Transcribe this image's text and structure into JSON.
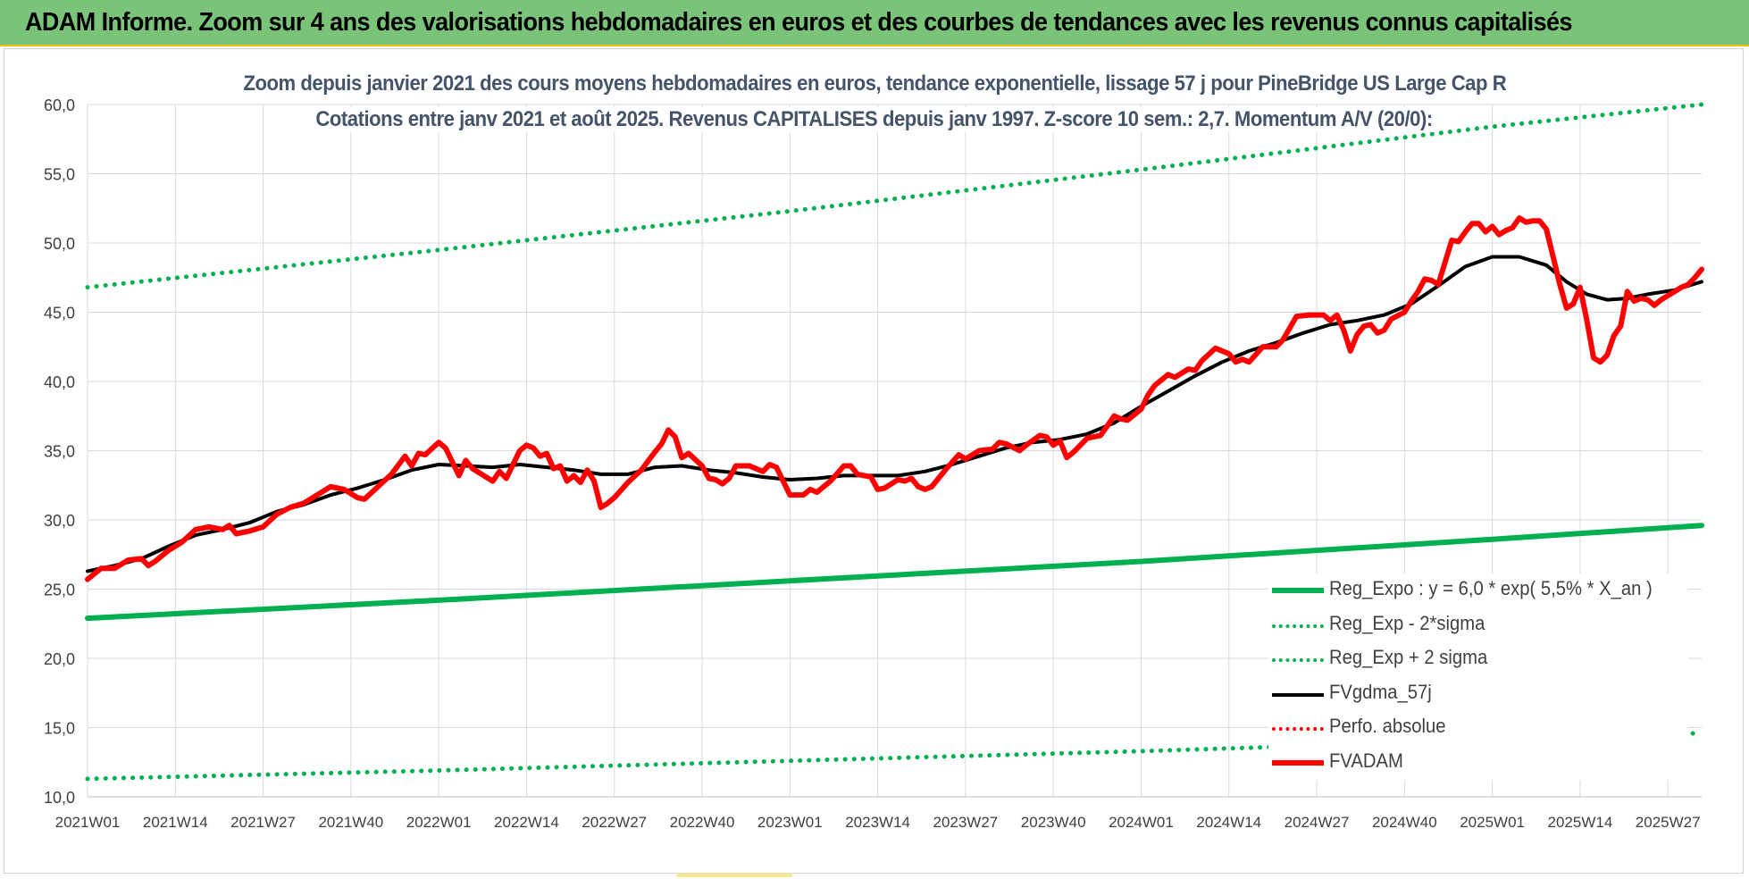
{
  "banner": {
    "title": "ADAM Informe. Zoom sur 4 ans des valorisations hebdomadaires en euros et des courbes de tendances avec les revenus connus capitalisés"
  },
  "colors": {
    "banner_bg": "#7ac47a",
    "reg_expo": "#00b050",
    "price": "#ff0000",
    "ma": "#000000",
    "title_text": "#44546a",
    "grid": "#d9d9d9"
  },
  "chart_data": {
    "type": "line",
    "title": "Zoom depuis janvier 2021 des cours moyens hebdomadaires en euros, tendance exponentielle, lissage 57 j pour PineBridge US Large Cap R",
    "subtitle": "Cotations entre janv 2021 et août 2025. Revenus CAPITALISES depuis janv 1997. Z-score 10 sem.: 2,7. Momentum A/V (20/0):",
    "xlabel": "",
    "ylabel": "",
    "ylim": [
      10,
      60
    ],
    "yticks": [
      "10,0",
      "15,0",
      "20,0",
      "25,0",
      "30,0",
      "35,0",
      "40,0",
      "45,0",
      "50,0",
      "55,0",
      "60,0"
    ],
    "x_ticks": [
      "2021W01",
      "2021W14",
      "2021W27",
      "2021W40",
      "2022W01",
      "2022W14",
      "2022W27",
      "2022W40",
      "2023W01",
      "2023W14",
      "2023W27",
      "2023W40",
      "2024W01",
      "2024W14",
      "2024W27",
      "2024W40",
      "2025W01",
      "2025W14",
      "2025W27"
    ],
    "x_tick_weeks": [
      0,
      13,
      26,
      39,
      52,
      65,
      78,
      91,
      104,
      117,
      130,
      143,
      156,
      169,
      182,
      195,
      208,
      221,
      234
    ],
    "x_max_week": 239,
    "grid": true,
    "legend_position": "bottom-right",
    "series": [
      {
        "name": "Reg_Expo : y = 6,0 * exp( 5,5% *  X_an )",
        "style": "solid-thick",
        "color": "#00b050",
        "points": [
          [
            0,
            22.9
          ],
          [
            52,
            24.2
          ],
          [
            104,
            25.6
          ],
          [
            156,
            27.0
          ],
          [
            208,
            28.6
          ],
          [
            239,
            29.6
          ]
        ]
      },
      {
        "name": "Reg_Exp - 2*sigma",
        "style": "dotted",
        "color": "#00b050",
        "points": [
          [
            0,
            11.3
          ],
          [
            52,
            11.9
          ],
          [
            104,
            12.6
          ],
          [
            156,
            13.3
          ],
          [
            208,
            14.1
          ],
          [
            239,
            14.6
          ]
        ]
      },
      {
        "name": "Reg_Exp + 2 sigma",
        "style": "dotted",
        "color": "#00b050",
        "points": [
          [
            0,
            46.8
          ],
          [
            52,
            49.5
          ],
          [
            104,
            52.3
          ],
          [
            156,
            55.3
          ],
          [
            208,
            58.4
          ],
          [
            239,
            60.0
          ]
        ]
      },
      {
        "name": "FVgdma_57j",
        "style": "solid",
        "color": "#000000",
        "points": [
          [
            0,
            26.3
          ],
          [
            4,
            26.7
          ],
          [
            8,
            27.2
          ],
          [
            12,
            28.1
          ],
          [
            16,
            28.9
          ],
          [
            20,
            29.3
          ],
          [
            24,
            29.8
          ],
          [
            28,
            30.6
          ],
          [
            32,
            31.1
          ],
          [
            36,
            31.8
          ],
          [
            40,
            32.3
          ],
          [
            44,
            32.9
          ],
          [
            48,
            33.6
          ],
          [
            52,
            34.0
          ],
          [
            56,
            33.9
          ],
          [
            60,
            33.8
          ],
          [
            64,
            34.0
          ],
          [
            68,
            33.8
          ],
          [
            72,
            33.6
          ],
          [
            76,
            33.3
          ],
          [
            80,
            33.3
          ],
          [
            84,
            33.8
          ],
          [
            88,
            33.9
          ],
          [
            92,
            33.6
          ],
          [
            96,
            33.4
          ],
          [
            100,
            33.1
          ],
          [
            104,
            32.9
          ],
          [
            108,
            33.0
          ],
          [
            112,
            33.2
          ],
          [
            116,
            33.2
          ],
          [
            120,
            33.2
          ],
          [
            124,
            33.5
          ],
          [
            128,
            34.0
          ],
          [
            132,
            34.6
          ],
          [
            136,
            35.2
          ],
          [
            140,
            35.6
          ],
          [
            144,
            35.8
          ],
          [
            148,
            36.2
          ],
          [
            152,
            37.0
          ],
          [
            156,
            38.2
          ],
          [
            160,
            39.3
          ],
          [
            164,
            40.4
          ],
          [
            168,
            41.4
          ],
          [
            172,
            42.2
          ],
          [
            176,
            42.8
          ],
          [
            180,
            43.5
          ],
          [
            184,
            44.1
          ],
          [
            188,
            44.4
          ],
          [
            192,
            44.8
          ],
          [
            196,
            45.6
          ],
          [
            200,
            46.9
          ],
          [
            204,
            48.3
          ],
          [
            208,
            49.0
          ],
          [
            212,
            49.0
          ],
          [
            216,
            48.4
          ],
          [
            219,
            47.2
          ],
          [
            222,
            46.3
          ],
          [
            225,
            45.9
          ],
          [
            228,
            46.0
          ],
          [
            231,
            46.3
          ],
          [
            235,
            46.6
          ],
          [
            239,
            47.2
          ]
        ]
      },
      {
        "name": "Perfo. absolue",
        "style": "dotted",
        "color": "#ff0000",
        "points": []
      },
      {
        "name": "FVADAM",
        "style": "solid-thick",
        "color": "#ff0000",
        "points": [
          [
            0,
            25.7
          ],
          [
            2,
            26.5
          ],
          [
            4,
            26.5
          ],
          [
            6,
            27.1
          ],
          [
            8,
            27.2
          ],
          [
            9,
            26.7
          ],
          [
            10,
            27.0
          ],
          [
            12,
            27.8
          ],
          [
            14,
            28.4
          ],
          [
            16,
            29.3
          ],
          [
            18,
            29.5
          ],
          [
            20,
            29.3
          ],
          [
            21,
            29.6
          ],
          [
            22,
            29.0
          ],
          [
            24,
            29.2
          ],
          [
            26,
            29.5
          ],
          [
            28,
            30.4
          ],
          [
            30,
            30.9
          ],
          [
            32,
            31.2
          ],
          [
            34,
            31.8
          ],
          [
            36,
            32.4
          ],
          [
            38,
            32.2
          ],
          [
            40,
            31.6
          ],
          [
            41,
            31.5
          ],
          [
            43,
            32.4
          ],
          [
            45,
            33.3
          ],
          [
            47,
            34.6
          ],
          [
            48,
            33.9
          ],
          [
            49,
            34.8
          ],
          [
            50,
            34.7
          ],
          [
            52,
            35.6
          ],
          [
            53,
            35.2
          ],
          [
            54,
            34.2
          ],
          [
            55,
            33.2
          ],
          [
            56,
            34.3
          ],
          [
            57,
            33.7
          ],
          [
            59,
            33.1
          ],
          [
            60,
            32.8
          ],
          [
            61,
            33.5
          ],
          [
            62,
            33.0
          ],
          [
            64,
            35.0
          ],
          [
            65,
            35.4
          ],
          [
            66,
            35.2
          ],
          [
            67,
            34.6
          ],
          [
            68,
            34.8
          ],
          [
            69,
            33.7
          ],
          [
            70,
            33.9
          ],
          [
            71,
            32.8
          ],
          [
            72,
            33.2
          ],
          [
            73,
            32.7
          ],
          [
            74,
            33.6
          ],
          [
            75,
            32.8
          ],
          [
            76,
            30.9
          ],
          [
            77,
            31.2
          ],
          [
            78,
            31.6
          ],
          [
            80,
            32.7
          ],
          [
            82,
            33.6
          ],
          [
            84,
            34.9
          ],
          [
            85,
            35.5
          ],
          [
            86,
            36.5
          ],
          [
            87,
            36.0
          ],
          [
            88,
            34.5
          ],
          [
            89,
            34.8
          ],
          [
            91,
            33.9
          ],
          [
            92,
            33.0
          ],
          [
            93,
            32.9
          ],
          [
            94,
            32.6
          ],
          [
            95,
            33.0
          ],
          [
            96,
            33.9
          ],
          [
            98,
            33.9
          ],
          [
            100,
            33.5
          ],
          [
            101,
            34.0
          ],
          [
            102,
            33.8
          ],
          [
            103,
            32.8
          ],
          [
            104,
            31.8
          ],
          [
            106,
            31.8
          ],
          [
            107,
            32.2
          ],
          [
            108,
            32.0
          ],
          [
            110,
            32.8
          ],
          [
            112,
            33.9
          ],
          [
            113,
            33.9
          ],
          [
            114,
            33.3
          ],
          [
            115,
            33.2
          ],
          [
            116,
            33.1
          ],
          [
            117,
            32.2
          ],
          [
            118,
            32.3
          ],
          [
            120,
            32.9
          ],
          [
            121,
            32.8
          ],
          [
            122,
            33.0
          ],
          [
            123,
            32.4
          ],
          [
            124,
            32.2
          ],
          [
            125,
            32.4
          ],
          [
            127,
            33.6
          ],
          [
            129,
            34.7
          ],
          [
            130,
            34.4
          ],
          [
            132,
            35.0
          ],
          [
            134,
            35.1
          ],
          [
            135,
            35.6
          ],
          [
            136,
            35.5
          ],
          [
            138,
            35.0
          ],
          [
            139,
            35.4
          ],
          [
            141,
            36.1
          ],
          [
            142,
            36.0
          ],
          [
            143,
            35.4
          ],
          [
            144,
            35.7
          ],
          [
            145,
            34.5
          ],
          [
            146,
            34.9
          ],
          [
            148,
            35.9
          ],
          [
            150,
            36.1
          ],
          [
            151,
            36.8
          ],
          [
            152,
            37.5
          ],
          [
            153,
            37.3
          ],
          [
            154,
            37.2
          ],
          [
            156,
            38.0
          ],
          [
            157,
            39.0
          ],
          [
            158,
            39.7
          ],
          [
            160,
            40.5
          ],
          [
            161,
            40.3
          ],
          [
            163,
            40.9
          ],
          [
            164,
            40.8
          ],
          [
            165,
            41.5
          ],
          [
            167,
            42.4
          ],
          [
            169,
            42.0
          ],
          [
            170,
            41.4
          ],
          [
            171,
            41.6
          ],
          [
            172,
            41.4
          ],
          [
            174,
            42.5
          ],
          [
            176,
            42.5
          ],
          [
            177,
            43.0
          ],
          [
            179,
            44.7
          ],
          [
            181,
            44.8
          ],
          [
            183,
            44.8
          ],
          [
            184,
            44.4
          ],
          [
            185,
            44.8
          ],
          [
            186,
            43.7
          ],
          [
            187,
            42.2
          ],
          [
            188,
            43.4
          ],
          [
            189,
            44.0
          ],
          [
            190,
            44.1
          ],
          [
            191,
            43.5
          ],
          [
            192,
            43.7
          ],
          [
            193,
            44.5
          ],
          [
            195,
            45.0
          ],
          [
            196,
            45.8
          ],
          [
            197,
            46.5
          ],
          [
            198,
            47.4
          ],
          [
            199,
            47.3
          ],
          [
            200,
            47.0
          ],
          [
            201,
            48.6
          ],
          [
            202,
            50.2
          ],
          [
            203,
            50.1
          ],
          [
            204,
            50.8
          ],
          [
            205,
            51.4
          ],
          [
            206,
            51.4
          ],
          [
            207,
            50.8
          ],
          [
            208,
            51.2
          ],
          [
            209,
            50.6
          ],
          [
            210,
            50.9
          ],
          [
            211,
            51.1
          ],
          [
            212,
            51.8
          ],
          [
            213,
            51.5
          ],
          [
            214,
            51.6
          ],
          [
            215,
            51.6
          ],
          [
            216,
            51.0
          ],
          [
            217,
            49.0
          ],
          [
            218,
            47.0
          ],
          [
            219,
            45.3
          ],
          [
            220,
            45.6
          ],
          [
            221,
            46.8
          ],
          [
            222,
            44.4
          ],
          [
            223,
            41.7
          ],
          [
            224,
            41.4
          ],
          [
            225,
            41.9
          ],
          [
            226,
            43.3
          ],
          [
            227,
            44.0
          ],
          [
            228,
            46.5
          ],
          [
            229,
            45.8
          ],
          [
            230,
            46.0
          ],
          [
            231,
            45.9
          ],
          [
            232,
            45.5
          ],
          [
            233,
            45.9
          ],
          [
            234,
            46.2
          ],
          [
            235,
            46.5
          ],
          [
            236,
            46.8
          ],
          [
            237,
            47.0
          ],
          [
            238,
            47.5
          ],
          [
            239,
            48.1
          ]
        ]
      }
    ]
  }
}
